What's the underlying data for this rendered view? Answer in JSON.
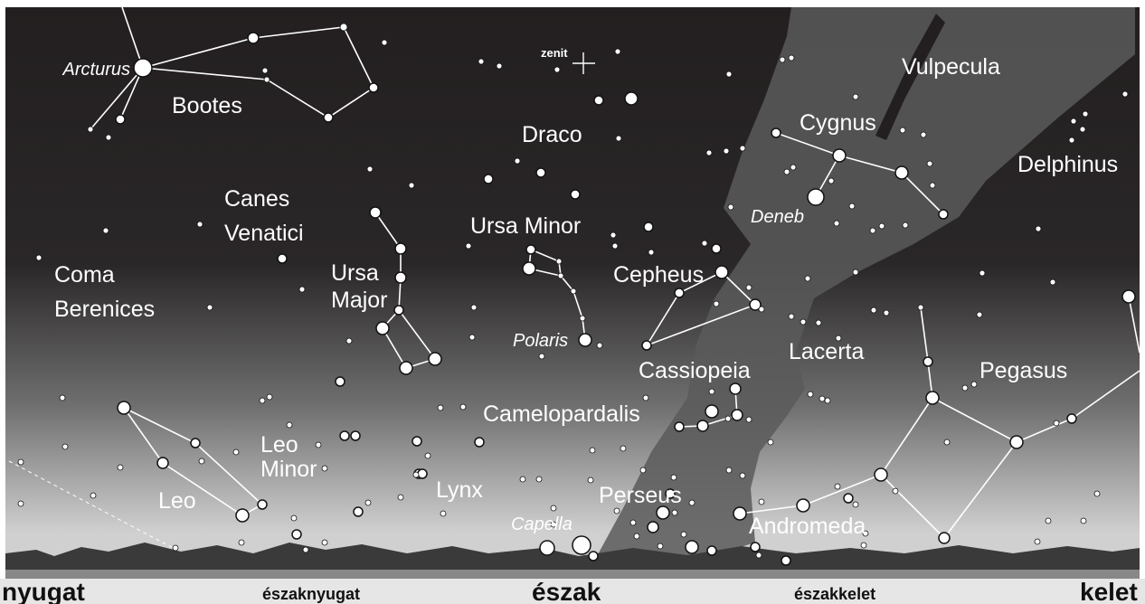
{
  "zenith": "zenit",
  "constellations": [
    "Bootes",
    "Draco",
    "Vulpecula",
    "Cygnus",
    "Delphinus",
    "Canes",
    "Venatici",
    "Ursa Minor",
    "Coma",
    "Berenices",
    "Ursa",
    "Major",
    "Cepheus",
    "Lacerta",
    "Cassiopeia",
    "Pegasus",
    "Camelopardalis",
    "Leo",
    "Minor",
    "Lynx",
    "Leo",
    "Perseus",
    "Andromeda"
  ],
  "stars": [
    "Arcturus",
    "Deneb",
    "Polaris",
    "Capella"
  ],
  "directions": [
    "nyugat",
    "északnyugat",
    "észak",
    "északkelet",
    "kelet"
  ]
}
